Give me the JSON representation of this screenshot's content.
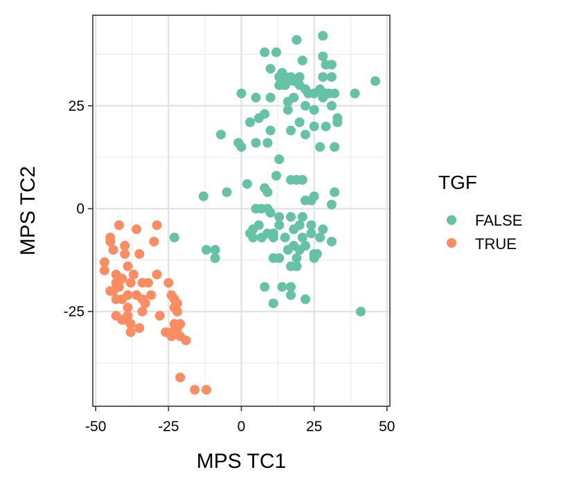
{
  "chart_data": {
    "type": "scatter",
    "title": "",
    "xlabel": "MPS TC1",
    "ylabel": "MPS TC2",
    "xlim": [
      -51,
      51
    ],
    "ylim": [
      -48,
      47
    ],
    "xticks": [
      -50,
      -25,
      0,
      25,
      50
    ],
    "xtick_labels": [
      "-50",
      "-25",
      "0",
      "25",
      "50"
    ],
    "yticks": [
      -25,
      0,
      25
    ],
    "ytick_labels": [
      "-25",
      "0",
      "25"
    ],
    "grid": true,
    "legend": {
      "title": "TGF",
      "position": "right"
    },
    "series": [
      {
        "name": "FALSE",
        "color": "#66C2A5",
        "points": [
          [
            19,
            41
          ],
          [
            28,
            42
          ],
          [
            8,
            38
          ],
          [
            12,
            38
          ],
          [
            28,
            37
          ],
          [
            21,
            36
          ],
          [
            29,
            35
          ],
          [
            31,
            35
          ],
          [
            10,
            34
          ],
          [
            14,
            33
          ],
          [
            15,
            32
          ],
          [
            17,
            32
          ],
          [
            13,
            32
          ],
          [
            16,
            31
          ],
          [
            20,
            32
          ],
          [
            28,
            32
          ],
          [
            31,
            32
          ],
          [
            46,
            31
          ],
          [
            13,
            30
          ],
          [
            15,
            30
          ],
          [
            18,
            31
          ],
          [
            20,
            30
          ],
          [
            22,
            29
          ],
          [
            25,
            28
          ],
          [
            27,
            29
          ],
          [
            29,
            28
          ],
          [
            30,
            28
          ],
          [
            32,
            28
          ],
          [
            39,
            28
          ],
          [
            0,
            28
          ],
          [
            5,
            27
          ],
          [
            10,
            27
          ],
          [
            18,
            27
          ],
          [
            23,
            28
          ],
          [
            28,
            27
          ],
          [
            16,
            26
          ],
          [
            22,
            25
          ],
          [
            16,
            24
          ],
          [
            25,
            24
          ],
          [
            31,
            25
          ],
          [
            8,
            23
          ],
          [
            6,
            22
          ],
          [
            3,
            21
          ],
          [
            20,
            21
          ],
          [
            25,
            20
          ],
          [
            33,
            22
          ],
          [
            33,
            21
          ],
          [
            29,
            20
          ],
          [
            10,
            19
          ],
          [
            17,
            19
          ],
          [
            22,
            18
          ],
          [
            -7,
            18
          ],
          [
            -1,
            16
          ],
          [
            5,
            16
          ],
          [
            9,
            16
          ],
          [
            0,
            15
          ],
          [
            27,
            15
          ],
          [
            32,
            15
          ],
          [
            13,
            12
          ],
          [
            12,
            8
          ],
          [
            17,
            7
          ],
          [
            19,
            7
          ],
          [
            21,
            7
          ],
          [
            8,
            5
          ],
          [
            2,
            6
          ],
          [
            9,
            4
          ],
          [
            25,
            3
          ],
          [
            32,
            4
          ],
          [
            -13,
            3
          ],
          [
            -5,
            4
          ],
          [
            22,
            2
          ],
          [
            24,
            2
          ],
          [
            31,
            1
          ],
          [
            5,
            0
          ],
          [
            7,
            0
          ],
          [
            9,
            0
          ],
          [
            10,
            -1
          ],
          [
            13,
            -2
          ],
          [
            17,
            -2
          ],
          [
            21,
            -2
          ],
          [
            18,
            -5
          ],
          [
            6,
            -4
          ],
          [
            4,
            -5
          ],
          [
            3,
            -6
          ],
          [
            9,
            -6
          ],
          [
            11,
            -6
          ],
          [
            13,
            -4
          ],
          [
            20,
            -4
          ],
          [
            24,
            -4
          ],
          [
            28,
            -5
          ],
          [
            4,
            -7
          ],
          [
            7,
            -7
          ],
          [
            11,
            -7
          ],
          [
            15,
            -7
          ],
          [
            21,
            -7
          ],
          [
            24,
            -6
          ],
          [
            27,
            -7
          ],
          [
            31,
            -8
          ],
          [
            -23,
            -7
          ],
          [
            -12,
            -10
          ],
          [
            -9,
            -10
          ],
          [
            -9,
            -12
          ],
          [
            16,
            -10
          ],
          [
            18,
            -9
          ],
          [
            22,
            -9
          ],
          [
            20,
            -10
          ],
          [
            25,
            -11
          ],
          [
            25,
            -12
          ],
          [
            13,
            -12
          ],
          [
            11,
            -12
          ],
          [
            19,
            -12
          ],
          [
            17,
            -14
          ],
          [
            19,
            -14
          ],
          [
            26,
            -11
          ],
          [
            8,
            -19
          ],
          [
            14,
            -19
          ],
          [
            17,
            -19
          ],
          [
            17,
            -21
          ],
          [
            22,
            -22
          ],
          [
            11,
            -23
          ],
          [
            41,
            -25
          ]
        ]
      },
      {
        "name": "TRUE",
        "color": "#FC8D62",
        "points": [
          [
            -42,
            -4
          ],
          [
            -29,
            -4
          ],
          [
            -36,
            -5
          ],
          [
            -45,
            -7
          ],
          [
            -45,
            -8
          ],
          [
            -40,
            -9
          ],
          [
            -30,
            -8
          ],
          [
            -44,
            -10
          ],
          [
            -35,
            -11
          ],
          [
            -40,
            -11
          ],
          [
            -47,
            -13
          ],
          [
            -47,
            -15
          ],
          [
            -39,
            -14
          ],
          [
            -43,
            -16
          ],
          [
            -37,
            -16
          ],
          [
            -41,
            -17
          ],
          [
            -34,
            -18
          ],
          [
            -29,
            -16
          ],
          [
            -43,
            -18
          ],
          [
            -32,
            -18
          ],
          [
            -42,
            -19
          ],
          [
            -38,
            -18
          ],
          [
            -45,
            -20
          ],
          [
            -44,
            -20
          ],
          [
            -39,
            -21
          ],
          [
            -36,
            -21
          ],
          [
            -31,
            -21
          ],
          [
            -25,
            -18
          ],
          [
            -24,
            -21
          ],
          [
            -43,
            -22
          ],
          [
            -41,
            -22
          ],
          [
            -34,
            -22
          ],
          [
            -33,
            -23
          ],
          [
            -23,
            -22
          ],
          [
            -39,
            -24
          ],
          [
            -22,
            -23
          ],
          [
            -23,
            -24
          ],
          [
            -22,
            -25
          ],
          [
            -43,
            -26
          ],
          [
            -39,
            -26
          ],
          [
            -41,
            -27
          ],
          [
            -34,
            -25
          ],
          [
            -28,
            -26
          ],
          [
            -40,
            -27
          ],
          [
            -38,
            -28
          ],
          [
            -35,
            -29
          ],
          [
            -23,
            -28
          ],
          [
            -21,
            -28
          ],
          [
            -38,
            -30
          ],
          [
            -26,
            -30
          ],
          [
            -24,
            -30
          ],
          [
            -22,
            -29
          ],
          [
            -24,
            -31
          ],
          [
            -21,
            -31
          ],
          [
            -19,
            -32
          ],
          [
            -21,
            -41
          ],
          [
            -16,
            -44
          ],
          [
            -12,
            -44
          ]
        ]
      }
    ]
  }
}
